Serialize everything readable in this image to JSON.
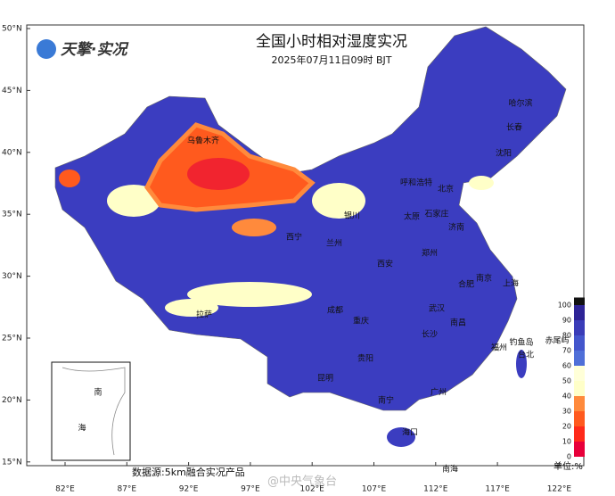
{
  "header": {
    "title": "全国小时相对湿度实况",
    "subtitle": "2025年07月11日09时 BJT",
    "logo": "天擎·实况"
  },
  "axes": {
    "lat_labels": [
      "50°N",
      "45°N",
      "40°N",
      "35°N",
      "30°N",
      "25°N",
      "20°N",
      "15°N"
    ],
    "lon_labels": [
      "82°E",
      "87°E",
      "92°E",
      "97°E",
      "102°E",
      "107°E",
      "112°E",
      "117°E",
      "122°E"
    ]
  },
  "cities": [
    "乌鲁木齐",
    "哈尔滨",
    "长春",
    "沈阳",
    "呼和浩特",
    "北京",
    "石家庄",
    "太原",
    "济南",
    "银川",
    "西宁",
    "兰州",
    "郑州",
    "西安",
    "南京",
    "合肥",
    "上海",
    "成都",
    "武汉",
    "重庆",
    "拉萨",
    "长沙",
    "南昌",
    "贵阳",
    "昆明",
    "福州",
    "台北",
    "南宁",
    "广州",
    "海口",
    "钓鱼岛",
    "赤尾屿",
    "南",
    "海",
    "南海"
  ],
  "legend": {
    "ticks": [
      0,
      10,
      20,
      30,
      40,
      50,
      60,
      70,
      80,
      90,
      100
    ],
    "colors": [
      "#e8003a",
      "#ff2a1a",
      "#ff5a1e",
      "#ff8a3c",
      "#ffffc8",
      "#ffffd8",
      "#4f6fd8",
      "#4456cc",
      "#3a3cb8",
      "#2e2496"
    ],
    "top_color": "#111111",
    "unit": "单位:%"
  },
  "footer": {
    "source": "数据源:5km融合实况产品",
    "watermark": "@中央气象台"
  }
}
